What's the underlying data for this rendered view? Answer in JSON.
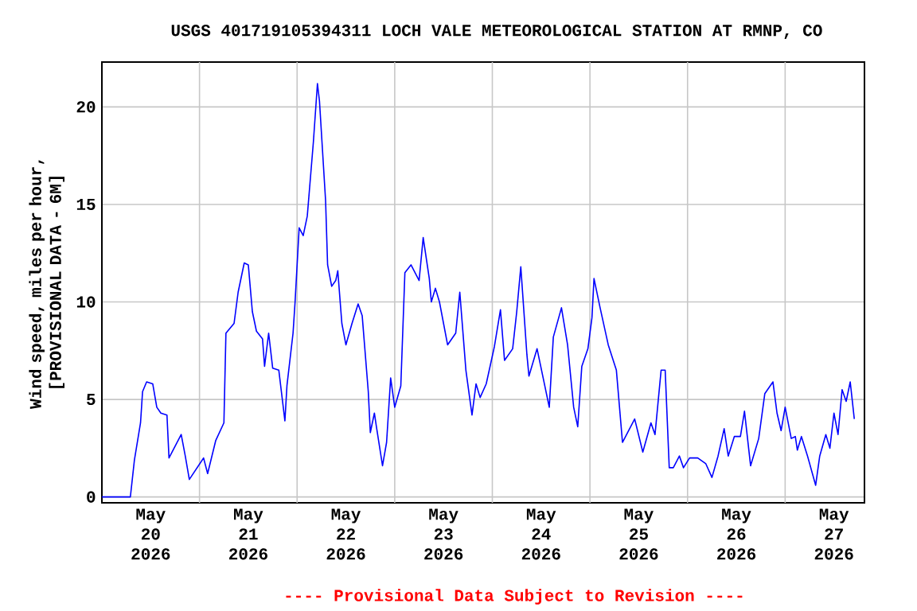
{
  "chart_data": {
    "type": "line",
    "title": "USGS 401719105394311 LOCH VALE METEOROLOGICAL STATION AT RMNP, CO",
    "ylabel": "Wind speed, miles per hour, [PROVISIONAL DATA - 6M]",
    "annotations": [
      "---- Provisional Data Subject to Revision ----"
    ],
    "xlim": [
      "2026-05-20T00:00",
      "2026-05-27T19:30"
    ],
    "xticks": [
      {
        "value": "2026-05-20T12:00",
        "label": "May 20 2026"
      },
      {
        "value": "2026-05-21T12:00",
        "label": "May 21 2026"
      },
      {
        "value": "2026-05-22T12:00",
        "label": "May 22 2026"
      },
      {
        "value": "2026-05-23T12:00",
        "label": "May 23 2026"
      },
      {
        "value": "2026-05-24T12:00",
        "label": "May 24 2026"
      },
      {
        "value": "2026-05-25T12:00",
        "label": "May 25 2026"
      },
      {
        "value": "2026-05-26T12:00",
        "label": "May 26 2026"
      },
      {
        "value": "2026-05-27T12:00",
        "label": "May 27 2026"
      },
      {
        "value": "2026-05-21T00:00",
        "label": null
      },
      {
        "value": "2026-05-22T00:00",
        "label": null
      },
      {
        "value": "2026-05-23T00:00",
        "label": null
      },
      {
        "value": "2026-05-24T00:00",
        "label": null
      },
      {
        "value": "2026-05-25T00:00",
        "label": null
      },
      {
        "value": "2026-05-26T00:00",
        "label": null
      },
      {
        "value": "2026-05-27T00:00",
        "label": null
      }
    ],
    "ylim": [
      -0.3,
      22.3
    ],
    "yticks": [
      0,
      5,
      10,
      15,
      20
    ],
    "grid": true,
    "marker": "none",
    "line_style": "solid",
    "series": [
      {
        "color": "#0000ff",
        "x": [
          "2026-05-20T00:00",
          "2026-05-20T07:00",
          "2026-05-20T08:00",
          "2026-05-20T09:30",
          "2026-05-20T10:00",
          "2026-05-20T11:00",
          "2026-05-20T12:30",
          "2026-05-20T13:30",
          "2026-05-20T14:30",
          "2026-05-20T16:00",
          "2026-05-20T16:30",
          "2026-05-20T19:30",
          "2026-05-20T20:30",
          "2026-05-20T21:30",
          "2026-05-21T01:00",
          "2026-05-21T02:00",
          "2026-05-21T04:00",
          "2026-05-21T06:00",
          "2026-05-21T06:30",
          "2026-05-21T08:30",
          "2026-05-21T09:30",
          "2026-05-21T11:00",
          "2026-05-21T12:00",
          "2026-05-21T13:00",
          "2026-05-21T14:00",
          "2026-05-21T15:30",
          "2026-05-21T16:00",
          "2026-05-21T17:00",
          "2026-05-21T18:00",
          "2026-05-21T19:30",
          "2026-05-21T21:00",
          "2026-05-21T21:30",
          "2026-05-21T23:00",
          "2026-05-21T23:30",
          "2026-05-22T00:30",
          "2026-05-22T01:30",
          "2026-05-22T02:30",
          "2026-05-22T04:00",
          "2026-05-22T05:00",
          "2026-05-22T05:30",
          "2026-05-22T07:00",
          "2026-05-22T07:30",
          "2026-05-22T08:30",
          "2026-05-22T09:30",
          "2026-05-22T10:00",
          "2026-05-22T11:00",
          "2026-05-22T12:00",
          "2026-05-22T13:30",
          "2026-05-22T15:00",
          "2026-05-22T16:00",
          "2026-05-22T17:00",
          "2026-05-22T17:30",
          "2026-05-22T18:00",
          "2026-05-22T19:00",
          "2026-05-22T19:30",
          "2026-05-22T21:00",
          "2026-05-22T22:00",
          "2026-05-22T23:00",
          "2026-05-23T00:00",
          "2026-05-23T01:30",
          "2026-05-23T02:30",
          "2026-05-23T04:00",
          "2026-05-23T06:00",
          "2026-05-23T07:00",
          "2026-05-23T08:30",
          "2026-05-23T09:00",
          "2026-05-23T10:00",
          "2026-05-23T11:00",
          "2026-05-23T13:00",
          "2026-05-23T15:00",
          "2026-05-23T16:00",
          "2026-05-23T17:30",
          "2026-05-23T19:00",
          "2026-05-23T20:00",
          "2026-05-23T21:00",
          "2026-05-23T22:30",
          "2026-05-24T00:30",
          "2026-05-24T02:00",
          "2026-05-24T03:00",
          "2026-05-24T05:00",
          "2026-05-24T06:00",
          "2026-05-24T07:00",
          "2026-05-24T08:30",
          "2026-05-24T09:00",
          "2026-05-24T11:00",
          "2026-05-24T12:30",
          "2026-05-24T14:00",
          "2026-05-24T15:00",
          "2026-05-24T17:00",
          "2026-05-24T18:30",
          "2026-05-24T20:00",
          "2026-05-24T21:00",
          "2026-05-24T22:00",
          "2026-05-24T23:30",
          "2026-05-25T00:30",
          "2026-05-25T01:00",
          "2026-05-25T02:30",
          "2026-05-25T04:30",
          "2026-05-25T06:30",
          "2026-05-25T08:00",
          "2026-05-25T11:00",
          "2026-05-25T13:00",
          "2026-05-25T15:00",
          "2026-05-25T16:00",
          "2026-05-25T17:30",
          "2026-05-25T18:30",
          "2026-05-25T19:30",
          "2026-05-25T20:30",
          "2026-05-25T22:00",
          "2026-05-25T23:00",
          "2026-05-26T00:30",
          "2026-05-26T02:30",
          "2026-05-26T04:30",
          "2026-05-26T06:00",
          "2026-05-26T07:30",
          "2026-05-26T09:00",
          "2026-05-26T10:00",
          "2026-05-26T11:30",
          "2026-05-26T13:00",
          "2026-05-26T14:00",
          "2026-05-26T15:30",
          "2026-05-26T17:30",
          "2026-05-26T19:00",
          "2026-05-26T21:00",
          "2026-05-26T22:00",
          "2026-05-26T23:00",
          "2026-05-27T00:00",
          "2026-05-27T01:30",
          "2026-05-27T02:30",
          "2026-05-27T03:00",
          "2026-05-27T04:00",
          "2026-05-27T05:30",
          "2026-05-27T07:30",
          "2026-05-27T08:30",
          "2026-05-27T10:00",
          "2026-05-27T11:00",
          "2026-05-27T12:00",
          "2026-05-27T13:00",
          "2026-05-27T14:00",
          "2026-05-27T15:00",
          "2026-05-27T16:00",
          "2026-05-27T17:00"
        ],
        "values": [
          0,
          0,
          1.9,
          3.8,
          5.4,
          5.9,
          5.8,
          4.6,
          4.3,
          4.2,
          2.0,
          3.2,
          2.1,
          0.9,
          2.0,
          1.2,
          2.9,
          3.8,
          8.4,
          8.9,
          10.5,
          12.0,
          11.9,
          9.5,
          8.5,
          8.1,
          6.7,
          8.4,
          6.6,
          6.5,
          3.9,
          5.7,
          8.4,
          10.0,
          13.8,
          13.4,
          14.4,
          18.2,
          21.2,
          20.3,
          15.2,
          11.9,
          10.8,
          11.1,
          11.6,
          8.9,
          7.8,
          8.9,
          9.9,
          9.3,
          6.7,
          5.4,
          3.3,
          4.3,
          3.6,
          1.6,
          2.8,
          6.1,
          4.6,
          5.7,
          11.5,
          11.9,
          11.1,
          13.3,
          11.2,
          10.0,
          10.7,
          10.0,
          7.8,
          8.4,
          10.5,
          6.5,
          4.2,
          5.8,
          5.1,
          5.8,
          7.7,
          9.6,
          7.0,
          7.6,
          9.5,
          11.8,
          7.3,
          6.2,
          7.6,
          6.1,
          4.6,
          8.2,
          9.7,
          7.8,
          4.6,
          3.6,
          6.7,
          7.6,
          9.2,
          11.2,
          9.7,
          7.8,
          6.5,
          2.8,
          4.0,
          2.3,
          3.8,
          3.2,
          6.5,
          6.5,
          1.5,
          1.5,
          2.1,
          1.5,
          2.0,
          2.0,
          1.7,
          1.0,
          2.1,
          3.5,
          2.1,
          3.1,
          3.1,
          4.4,
          1.6,
          3.0,
          5.3,
          5.9,
          4.3,
          3.4,
          4.6,
          3.0,
          3.1,
          2.4,
          3.1,
          2.1,
          0.6,
          2.1,
          3.2,
          2.5,
          4.3,
          3.2,
          5.5,
          4.9,
          5.9,
          4.0
        ]
      }
    ]
  }
}
